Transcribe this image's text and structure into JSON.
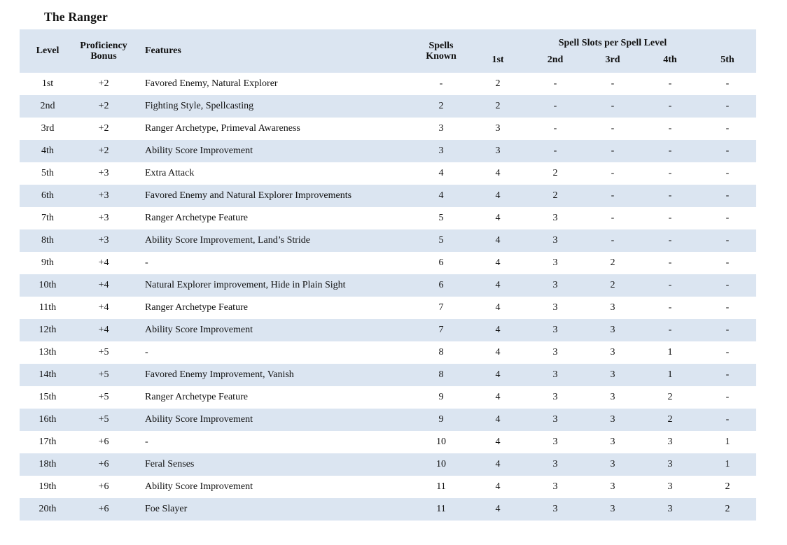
{
  "title": "The Ranger",
  "colors": {
    "stripe": "#dbe5f1",
    "text": "#111111",
    "background": "#ffffff"
  },
  "table": {
    "headers": {
      "level": "Level",
      "proficiency": "Proficiency Bonus",
      "features": "Features",
      "spells_known": "Spells Known",
      "slots_group": "Spell Slots per Spell Level",
      "slot_levels": [
        "1st",
        "2nd",
        "3rd",
        "4th",
        "5th"
      ]
    },
    "rows": [
      {
        "level": "1st",
        "prof": "+2",
        "features": "Favored Enemy, Natural Explorer",
        "spells": "-",
        "slots": [
          "2",
          "-",
          "-",
          "-",
          "-"
        ]
      },
      {
        "level": "2nd",
        "prof": "+2",
        "features": "Fighting Style, Spellcasting",
        "spells": "2",
        "slots": [
          "2",
          "-",
          "-",
          "-",
          "-"
        ]
      },
      {
        "level": "3rd",
        "prof": "+2",
        "features": "Ranger Archetype, Primeval Awareness",
        "spells": "3",
        "slots": [
          "3",
          "-",
          "-",
          "-",
          "-"
        ]
      },
      {
        "level": "4th",
        "prof": "+2",
        "features": "Ability Score Improvement",
        "spells": "3",
        "slots": [
          "3",
          "-",
          "-",
          "-",
          "-"
        ]
      },
      {
        "level": "5th",
        "prof": "+3",
        "features": "Extra Attack",
        "spells": "4",
        "slots": [
          "4",
          "2",
          "-",
          "-",
          "-"
        ]
      },
      {
        "level": "6th",
        "prof": "+3",
        "features": "Favored Enemy and Natural Explorer Improvements",
        "spells": "4",
        "slots": [
          "4",
          "2",
          "-",
          "-",
          "-"
        ]
      },
      {
        "level": "7th",
        "prof": "+3",
        "features": "Ranger Archetype Feature",
        "spells": "5",
        "slots": [
          "4",
          "3",
          "-",
          "-",
          "-"
        ]
      },
      {
        "level": "8th",
        "prof": "+3",
        "features": "Ability Score Improvement, Land’s Stride",
        "spells": "5",
        "slots": [
          "4",
          "3",
          "-",
          "-",
          "-"
        ]
      },
      {
        "level": "9th",
        "prof": "+4",
        "features": "-",
        "spells": "6",
        "slots": [
          "4",
          "3",
          "2",
          "-",
          "-"
        ]
      },
      {
        "level": "10th",
        "prof": "+4",
        "features": "Natural Explorer improvement, Hide in Plain Sight",
        "spells": "6",
        "slots": [
          "4",
          "3",
          "2",
          "-",
          "-"
        ]
      },
      {
        "level": "11th",
        "prof": "+4",
        "features": "Ranger Archetype Feature",
        "spells": "7",
        "slots": [
          "4",
          "3",
          "3",
          "-",
          "-"
        ]
      },
      {
        "level": "12th",
        "prof": "+4",
        "features": "Ability Score Improvement",
        "spells": "7",
        "slots": [
          "4",
          "3",
          "3",
          "-",
          "-"
        ]
      },
      {
        "level": "13th",
        "prof": "+5",
        "features": "-",
        "spells": "8",
        "slots": [
          "4",
          "3",
          "3",
          "1",
          "-"
        ]
      },
      {
        "level": "14th",
        "prof": "+5",
        "features": "Favored Enemy Improvement, Vanish",
        "spells": "8",
        "slots": [
          "4",
          "3",
          "3",
          "1",
          "-"
        ]
      },
      {
        "level": "15th",
        "prof": "+5",
        "features": "Ranger Archetype Feature",
        "spells": "9",
        "slots": [
          "4",
          "3",
          "3",
          "2",
          "-"
        ]
      },
      {
        "level": "16th",
        "prof": "+5",
        "features": "Ability Score Improvement",
        "spells": "9",
        "slots": [
          "4",
          "3",
          "3",
          "2",
          "-"
        ]
      },
      {
        "level": "17th",
        "prof": "+6",
        "features": "-",
        "spells": "10",
        "slots": [
          "4",
          "3",
          "3",
          "3",
          "1"
        ]
      },
      {
        "level": "18th",
        "prof": "+6",
        "features": "Feral Senses",
        "spells": "10",
        "slots": [
          "4",
          "3",
          "3",
          "3",
          "1"
        ]
      },
      {
        "level": "19th",
        "prof": "+6",
        "features": "Ability Score Improvement",
        "spells": "11",
        "slots": [
          "4",
          "3",
          "3",
          "3",
          "2"
        ]
      },
      {
        "level": "20th",
        "prof": "+6",
        "features": "Foe Slayer",
        "spells": "11",
        "slots": [
          "4",
          "3",
          "3",
          "3",
          "2"
        ]
      }
    ]
  }
}
